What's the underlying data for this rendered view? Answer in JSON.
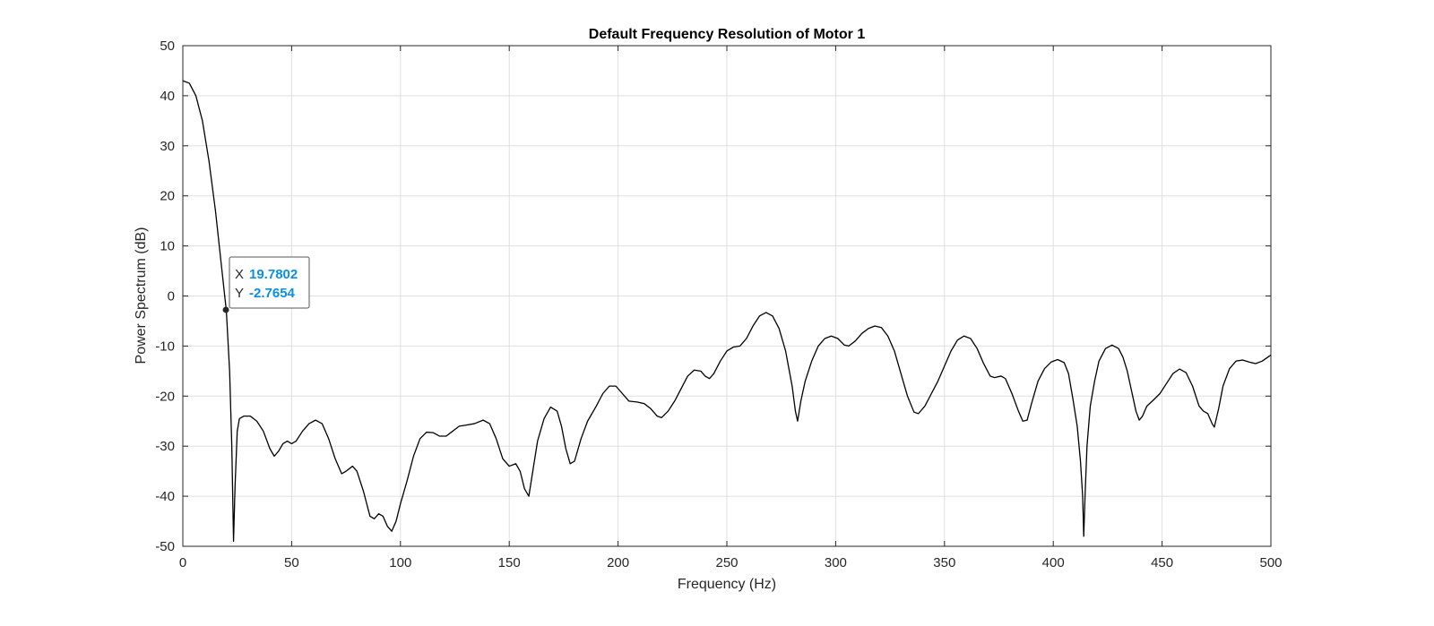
{
  "chart_data": {
    "type": "line",
    "title": "Default Frequency Resolution of Motor 1",
    "xlabel": "Frequency (Hz)",
    "ylabel": "Power Spectrum (dB)",
    "xlim": [
      0,
      500
    ],
    "ylim": [
      -50,
      50
    ],
    "xticks": [
      "0",
      "50",
      "100",
      "150",
      "200",
      "250",
      "300",
      "350",
      "400",
      "450",
      "500"
    ],
    "yticks": [
      "50",
      "40",
      "30",
      "20",
      "10",
      "0",
      "-10",
      "-20",
      "-30",
      "-40",
      "-50"
    ],
    "grid": true,
    "colors": {
      "line": "#000000",
      "datatip_value": "#0a8fe8",
      "grid": "#dfdfdf"
    },
    "series": [
      {
        "points": [
          [
            0,
            43
          ],
          [
            3,
            42.5
          ],
          [
            6,
            40
          ],
          [
            9,
            35
          ],
          [
            12,
            27
          ],
          [
            15,
            17
          ],
          [
            18,
            5
          ],
          [
            20,
            -3
          ],
          [
            21.5,
            -15
          ],
          [
            22.5,
            -30
          ],
          [
            23.3,
            -49
          ],
          [
            24,
            -38
          ],
          [
            25,
            -27
          ],
          [
            26,
            -24.5
          ],
          [
            28,
            -24
          ],
          [
            31,
            -24
          ],
          [
            34,
            -25
          ],
          [
            37,
            -27
          ],
          [
            40,
            -30.5
          ],
          [
            42,
            -32
          ],
          [
            44,
            -31
          ],
          [
            46,
            -29.5
          ],
          [
            48,
            -29
          ],
          [
            50,
            -29.5
          ],
          [
            52,
            -29
          ],
          [
            55,
            -27
          ],
          [
            58,
            -25.5
          ],
          [
            61,
            -24.8
          ],
          [
            64,
            -25.5
          ],
          [
            67,
            -28.5
          ],
          [
            70,
            -32.5
          ],
          [
            73,
            -35.5
          ],
          [
            75,
            -35
          ],
          [
            78,
            -34
          ],
          [
            80,
            -35
          ],
          [
            83,
            -39
          ],
          [
            86,
            -44
          ],
          [
            88,
            -44.5
          ],
          [
            90,
            -43.5
          ],
          [
            92,
            -44
          ],
          [
            94,
            -46
          ],
          [
            96,
            -47
          ],
          [
            98,
            -45
          ],
          [
            100,
            -41.5
          ],
          [
            103,
            -37
          ],
          [
            106,
            -32
          ],
          [
            109,
            -28.5
          ],
          [
            112,
            -27.2
          ],
          [
            115,
            -27.3
          ],
          [
            118,
            -28
          ],
          [
            121,
            -28
          ],
          [
            124,
            -27
          ],
          [
            127,
            -26
          ],
          [
            130,
            -25.8
          ],
          [
            134,
            -25.5
          ],
          [
            138,
            -24.8
          ],
          [
            141,
            -25.5
          ],
          [
            144,
            -28.5
          ],
          [
            147,
            -32.5
          ],
          [
            150,
            -34
          ],
          [
            153,
            -33.5
          ],
          [
            155,
            -35
          ],
          [
            157,
            -38.5
          ],
          [
            159,
            -40
          ],
          [
            161,
            -34.5
          ],
          [
            163,
            -29
          ],
          [
            166,
            -24.5
          ],
          [
            169,
            -22.2
          ],
          [
            172,
            -23
          ],
          [
            174,
            -26
          ],
          [
            176,
            -30.5
          ],
          [
            178,
            -33.5
          ],
          [
            180,
            -33
          ],
          [
            183,
            -28.5
          ],
          [
            186,
            -25
          ],
          [
            190,
            -22
          ],
          [
            193,
            -19.5
          ],
          [
            196,
            -18
          ],
          [
            199,
            -18
          ],
          [
            202,
            -19.5
          ],
          [
            205,
            -21
          ],
          [
            209,
            -21.2
          ],
          [
            212,
            -21.5
          ],
          [
            215,
            -22.5
          ],
          [
            218,
            -24
          ],
          [
            220,
            -24.3
          ],
          [
            223,
            -23
          ],
          [
            226,
            -21
          ],
          [
            229,
            -18.5
          ],
          [
            232,
            -16
          ],
          [
            235,
            -14.8
          ],
          [
            238,
            -15
          ],
          [
            240,
            -16
          ],
          [
            242,
            -16.5
          ],
          [
            244,
            -15.5
          ],
          [
            247,
            -13
          ],
          [
            250,
            -11
          ],
          [
            253,
            -10.2
          ],
          [
            256,
            -10
          ],
          [
            259,
            -8.5
          ],
          [
            262,
            -6
          ],
          [
            265,
            -4
          ],
          [
            268,
            -3.3
          ],
          [
            271,
            -4
          ],
          [
            274,
            -6.5
          ],
          [
            277,
            -11
          ],
          [
            280,
            -18
          ],
          [
            281.5,
            -23
          ],
          [
            282.5,
            -25
          ],
          [
            284,
            -21
          ],
          [
            286,
            -17
          ],
          [
            289,
            -13
          ],
          [
            292,
            -10
          ],
          [
            295,
            -8.5
          ],
          [
            298,
            -8
          ],
          [
            301,
            -8.5
          ],
          [
            304,
            -9.8
          ],
          [
            306,
            -10
          ],
          [
            309,
            -9
          ],
          [
            312,
            -7.5
          ],
          [
            315,
            -6.5
          ],
          [
            318,
            -6
          ],
          [
            321,
            -6.3
          ],
          [
            324,
            -8
          ],
          [
            327,
            -11
          ],
          [
            330,
            -15.5
          ],
          [
            333,
            -20
          ],
          [
            336,
            -23.2
          ],
          [
            338,
            -23.5
          ],
          [
            341,
            -22
          ],
          [
            344,
            -19.5
          ],
          [
            347,
            -17
          ],
          [
            350,
            -14
          ],
          [
            353,
            -11
          ],
          [
            356,
            -8.8
          ],
          [
            359,
            -8
          ],
          [
            362,
            -8.5
          ],
          [
            365,
            -10.5
          ],
          [
            368,
            -13.5
          ],
          [
            371,
            -16
          ],
          [
            373,
            -16.3
          ],
          [
            376,
            -16
          ],
          [
            378,
            -16.5
          ],
          [
            381,
            -19.5
          ],
          [
            384,
            -23
          ],
          [
            386,
            -25
          ],
          [
            388,
            -24.8
          ],
          [
            390,
            -21.5
          ],
          [
            393,
            -17
          ],
          [
            396,
            -14.5
          ],
          [
            399,
            -13.2
          ],
          [
            402,
            -12.7
          ],
          [
            405,
            -13.3
          ],
          [
            407,
            -15.5
          ],
          [
            409,
            -20.5
          ],
          [
            411,
            -26
          ],
          [
            412.5,
            -33
          ],
          [
            413.5,
            -40
          ],
          [
            414,
            -48
          ],
          [
            414.6,
            -40
          ],
          [
            415.5,
            -30
          ],
          [
            417,
            -22
          ],
          [
            419,
            -17
          ],
          [
            421,
            -13
          ],
          [
            424,
            -10.5
          ],
          [
            427,
            -9.8
          ],
          [
            430,
            -10.5
          ],
          [
            432,
            -12.2
          ],
          [
            434,
            -15
          ],
          [
            436,
            -19
          ],
          [
            438,
            -23
          ],
          [
            439.5,
            -24.8
          ],
          [
            441,
            -24
          ],
          [
            443,
            -22
          ],
          [
            446,
            -20.8
          ],
          [
            449,
            -19.5
          ],
          [
            452,
            -17.5
          ],
          [
            455,
            -15.5
          ],
          [
            458,
            -14.6
          ],
          [
            461,
            -15.3
          ],
          [
            464,
            -18
          ],
          [
            467,
            -22
          ],
          [
            469,
            -23
          ],
          [
            471,
            -23.5
          ],
          [
            473,
            -25.5
          ],
          [
            474,
            -26.2
          ],
          [
            476,
            -22.5
          ],
          [
            478,
            -18
          ],
          [
            481,
            -14.5
          ],
          [
            484,
            -13
          ],
          [
            487,
            -12.8
          ],
          [
            490,
            -13.2
          ],
          [
            493,
            -13.5
          ],
          [
            496,
            -13
          ],
          [
            500,
            -11.8
          ]
        ]
      }
    ],
    "datatip": {
      "x_label": "X",
      "y_label": "Y",
      "x": 19.7802,
      "y": -2.7654,
      "x_text": "19.7802",
      "y_text": "-2.7654"
    }
  }
}
